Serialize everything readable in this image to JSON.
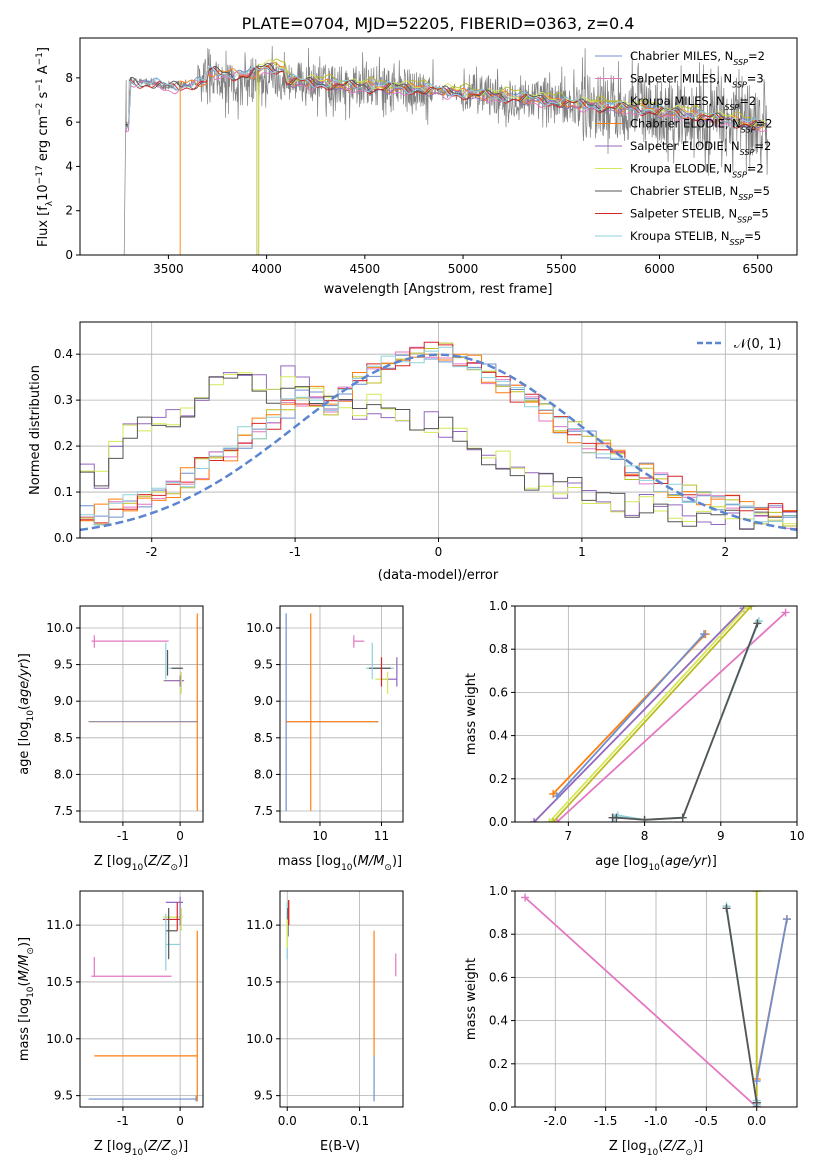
{
  "title": "PLATE=0704, MJD=52205, FIBERID=0363, z=0.4",
  "colors": {
    "chabrier_miles": "#6f8fcf",
    "salpeter_miles": "#e377c2",
    "kroupa_miles": "#bcbd22",
    "chabrier_elodie": "#ff7f0e",
    "salpeter_elodie": "#9467bd",
    "kroupa_elodie": "#d4e85a",
    "chabrier_stelib": "#555555",
    "salpeter_stelib": "#d62728",
    "kroupa_stelib": "#8ed1db",
    "normal_curve": "#5b84d1",
    "data": "#808080"
  },
  "legend_spectrum": [
    "Chabrier MILES, N_SSP=2",
    "Salpeter MILES, N_SSP=3",
    "Kroupa MILES, N_SSP=2",
    "Chabrier ELODIE, N_SSP=2",
    "Salpeter ELODIE, N_SSP=2",
    "Kroupa ELODIE, N_SSP=2",
    "Chabrier STELIB, N_SSP=5",
    "Salpeter STELIB, N_SSP=5",
    "Kroupa STELIB, N_SSP=5"
  ],
  "legend_hist": "𝒩(0, 1)",
  "chart_data": [
    {
      "type": "line",
      "panel": "spectrum",
      "xlabel": "wavelength [Angstrom, rest frame]",
      "ylabel": "Flux [fλ 10⁻¹⁷ erg cm⁻² s⁻¹ A⁻¹]",
      "xlim": [
        3050,
        6700
      ],
      "ylim": [
        0,
        9.8
      ],
      "xticks": [
        3500,
        4000,
        4500,
        5000,
        5500,
        6000,
        6500
      ],
      "yticks": [
        0,
        2,
        4,
        6,
        8
      ],
      "grid": false,
      "legend": "top-right",
      "series": [
        {
          "name": "data",
          "x": [
            3300,
            3500,
            3700,
            3900,
            4000,
            4200,
            4500,
            4800,
            5000,
            5300,
            5600,
            5900,
            6200,
            6550
          ],
          "y": [
            7.9,
            7.6,
            7.8,
            7.6,
            8.0,
            7.8,
            7.6,
            7.5,
            7.3,
            7.1,
            6.8,
            6.6,
            6.3,
            5.8
          ]
        },
        {
          "name": "Chabrier ELODIE, N_SSP=2",
          "x": [
            3560,
            3700,
            3900,
            4000,
            4200,
            4500,
            4800,
            5000,
            5300,
            5600,
            5900,
            6200,
            6550
          ],
          "y": [
            7.0,
            7.8,
            8.3,
            8.3,
            8.2,
            8.0,
            7.7,
            7.5,
            7.2,
            6.9,
            6.6,
            6.3,
            5.6
          ]
        }
      ]
    },
    {
      "type": "step",
      "panel": "residuals",
      "xlabel": "(data-model)/error",
      "ylabel": "Normed distribution",
      "xlim": [
        -2.5,
        2.5
      ],
      "ylim": [
        0,
        0.47
      ],
      "xticks": [
        -2,
        -1,
        0,
        1,
        2
      ],
      "yticks": [
        0.0,
        0.1,
        0.2,
        0.3,
        0.4
      ],
      "grid": true,
      "legend": "top-right",
      "normal_curve": {
        "mu": 0,
        "sigma": 1
      },
      "bin_centers": [
        -2.45,
        -2.35,
        -2.25,
        -2.15,
        -2.05,
        -1.95,
        -1.85,
        -1.75,
        -1.65,
        -1.55,
        -1.45,
        -1.35,
        -1.25,
        -1.15,
        -1.05,
        -0.95,
        -0.85,
        -0.75,
        -0.65,
        -0.55,
        -0.45,
        -0.35,
        -0.25,
        -0.15,
        -0.05,
        0.05,
        0.15,
        0.25,
        0.35,
        0.45,
        0.55,
        0.65,
        0.75,
        0.85,
        0.95,
        1.05,
        1.15,
        1.25,
        1.35,
        1.45,
        1.55,
        1.65,
        1.75,
        1.85,
        1.95,
        2.05,
        2.15,
        2.25,
        2.35,
        2.45
      ],
      "series": [
        {
          "name": "Chabrier MILES",
          "values": [
            0.05,
            0.05,
            0.06,
            0.08,
            0.09,
            0.1,
            0.11,
            0.13,
            0.15,
            0.17,
            0.19,
            0.22,
            0.24,
            0.26,
            0.28,
            0.3,
            0.31,
            0.29,
            0.31,
            0.35,
            0.36,
            0.38,
            0.39,
            0.4,
            0.41,
            0.4,
            0.39,
            0.38,
            0.36,
            0.34,
            0.32,
            0.3,
            0.27,
            0.25,
            0.23,
            0.21,
            0.19,
            0.17,
            0.15,
            0.14,
            0.12,
            0.11,
            0.1,
            0.09,
            0.08,
            0.07,
            0.06,
            0.05,
            0.05,
            0.04
          ]
        },
        {
          "name": "Salpeter ELODIE",
          "values": [
            0.15,
            0.13,
            0.19,
            0.23,
            0.24,
            0.27,
            0.26,
            0.28,
            0.31,
            0.33,
            0.35,
            0.37,
            0.34,
            0.31,
            0.35,
            0.34,
            0.31,
            0.3,
            0.28,
            0.27,
            0.29,
            0.28,
            0.27,
            0.24,
            0.25,
            0.24,
            0.22,
            0.2,
            0.18,
            0.17,
            0.14,
            0.12,
            0.12,
            0.1,
            0.11,
            0.1,
            0.09,
            0.08,
            0.07,
            0.07,
            0.06,
            0.06,
            0.05,
            0.05,
            0.05,
            0.04,
            0.04,
            0.04,
            0.04,
            0.04
          ]
        }
      ]
    },
    {
      "type": "scatter",
      "panel": "age-vs-Z",
      "xlabel": "Z [log10(Z/Z⊙)]",
      "ylabel": "age  [log10(age/yr)]",
      "xlim": [
        -1.75,
        0.4
      ],
      "ylim": [
        7.35,
        10.3
      ],
      "xticks": [
        -1,
        0
      ],
      "yticks": [
        7.5,
        8.0,
        8.5,
        9.0,
        9.5,
        10.0
      ],
      "grid": true
    },
    {
      "type": "scatter",
      "panel": "age-vs-mass",
      "xlabel": "mass [log10(M/M⊙)]",
      "xlim": [
        9.35,
        11.35
      ],
      "ylim": [
        7.35,
        10.3
      ],
      "xticks": [
        10,
        11
      ],
      "yticks": [
        7.5,
        8.0,
        8.5,
        9.0,
        9.5,
        10.0
      ],
      "grid": true
    },
    {
      "type": "line",
      "panel": "massweight-vs-age",
      "xlabel": "age  [log10(age/yr)]",
      "ylabel": "mass weight",
      "xlim": [
        6.3,
        10.0
      ],
      "ylim": [
        0.0,
        1.0
      ],
      "xticks": [
        7,
        8,
        9,
        10
      ],
      "yticks": [
        0.0,
        0.2,
        0.4,
        0.6,
        0.8,
        1.0
      ],
      "grid": true
    },
    {
      "type": "scatter",
      "panel": "mass-vs-Z",
      "xlabel": "Z [log10(Z/Z⊙)]",
      "ylabel": "mass [log10(M/M⊙)]",
      "xlim": [
        -1.75,
        0.4
      ],
      "ylim": [
        9.4,
        11.3
      ],
      "xticks": [
        -1,
        0
      ],
      "yticks": [
        9.5,
        10.0,
        10.5,
        11.0
      ],
      "grid": true
    },
    {
      "type": "scatter",
      "panel": "mass-vs-EBV",
      "xlabel": "E(B-V)",
      "xlim": [
        -0.01,
        0.16
      ],
      "ylim": [
        9.4,
        11.3
      ],
      "xticks": [
        0.0,
        0.1
      ],
      "yticks": [
        9.5,
        10.0,
        10.5,
        11.0
      ],
      "grid": true
    },
    {
      "type": "line",
      "panel": "massweight-vs-Z",
      "xlabel": "Z [log10(Z/Z⊙)]",
      "ylabel": "mass weight",
      "xlim": [
        -2.4,
        0.4
      ],
      "ylim": [
        0.0,
        1.0
      ],
      "xticks": [
        -2.0,
        -1.5,
        -1.0,
        -0.5,
        0.0
      ],
      "yticks": [
        0.0,
        0.2,
        0.4,
        0.6,
        0.8,
        1.0
      ],
      "grid": true
    }
  ]
}
